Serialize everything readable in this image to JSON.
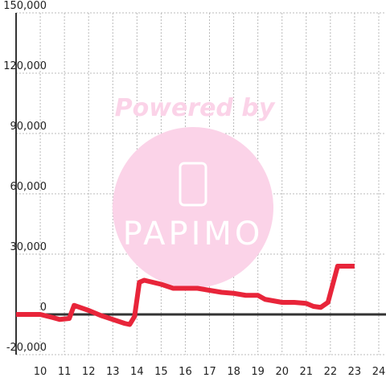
{
  "chart_data": {
    "type": "line",
    "watermark": {
      "text": "Powered by",
      "logo": "PAPIMO"
    },
    "x": [
      9,
      10,
      10.5,
      10.8,
      11.2,
      11.4,
      12,
      12.5,
      13,
      13.5,
      13.7,
      13.9,
      14.1,
      14.3,
      15,
      15.5,
      16,
      16.5,
      17,
      17.5,
      18,
      18.5,
      19,
      19.3,
      20,
      20.5,
      21,
      21.3,
      21.6,
      21.9,
      22.3,
      23
    ],
    "series": [
      {
        "color": "#e8253a",
        "values": [
          0,
          0,
          -1500,
          -2500,
          -2000,
          4500,
          2000,
          -500,
          -2500,
          -4500,
          -5000,
          -1000,
          16000,
          17000,
          15000,
          13000,
          13000,
          13000,
          12000,
          11000,
          10500,
          9500,
          9500,
          7500,
          6000,
          6000,
          5500,
          4000,
          3500,
          6000,
          24000,
          24000
        ]
      }
    ],
    "xlim": [
      9,
      24.3
    ],
    "xticks": [
      10,
      11,
      12,
      13,
      14,
      15,
      16,
      17,
      18,
      19,
      20,
      21,
      22,
      23,
      24
    ],
    "ylim": [
      -20000,
      150000
    ],
    "yticks": [
      {
        "value": -20000,
        "label": "-20,000"
      },
      0,
      {
        "value": 30000,
        "label": "30,000"
      },
      {
        "value": 60000,
        "label": "60,000"
      },
      {
        "value": 90000,
        "label": "90,000"
      },
      {
        "value": 120000,
        "label": "120,000"
      },
      {
        "value": 150000,
        "label": "150,000"
      }
    ],
    "grid": true
  }
}
